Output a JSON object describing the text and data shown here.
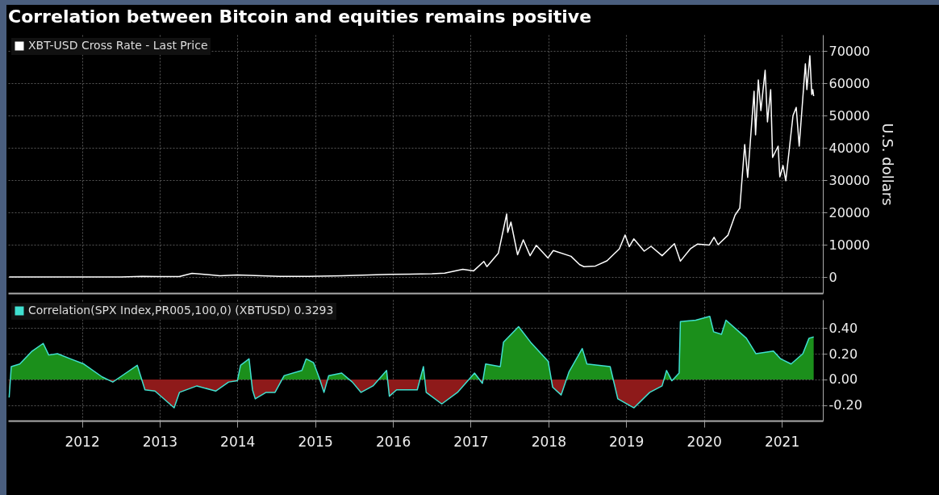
{
  "chart_data": [
    {
      "type": "line",
      "title": "Correlation between Bitcoin and equities remains positive",
      "ylabel": "U.S. dollars",
      "xlim": [
        "2011-07-20",
        "2022-01-10"
      ],
      "xticks": [
        {
          "value": "2012-07-01",
          "label": null
        },
        {
          "value": "2013-07-01",
          "label": null
        },
        {
          "value": "2014-07-01",
          "label": null
        },
        {
          "value": "2015-07-01",
          "label": null
        },
        {
          "value": "2016-07-01",
          "label": null
        },
        {
          "value": "2017-07-01",
          "label": null
        },
        {
          "value": "2018-07-01",
          "label": null
        },
        {
          "value": "2019-07-01",
          "label": null
        },
        {
          "value": "2020-07-01",
          "label": null
        },
        {
          "value": "2021-07-01",
          "label": null
        }
      ],
      "ylim": [
        -5000,
        75000
      ],
      "yticks": [
        0,
        10000,
        20000,
        30000,
        40000,
        50000,
        60000,
        70000
      ],
      "tick_labels": "y",
      "grid": true,
      "legend": "top left",
      "series": [
        {
          "name": "XBT-USD Cross Rate - Last Price",
          "color": "#ffffff",
          "x": [
            "2011-07-25",
            "2011-11-15",
            "2012-06-01",
            "2012-08-15",
            "2013-01-01",
            "2013-04-10",
            "2013-07-01",
            "2013-10-01",
            "2013-11-30",
            "2014-01-15",
            "2014-04-10",
            "2014-07-01",
            "2015-01-14",
            "2015-06-01",
            "2015-11-04",
            "2016-06-16",
            "2016-12-31",
            "2017-03-01",
            "2017-05-25",
            "2017-07-15",
            "2017-09-01",
            "2017-09-15",
            "2017-11-08",
            "2017-12-17",
            "2017-12-22",
            "2018-01-06",
            "2018-02-06",
            "2018-03-05",
            "2018-04-06",
            "2018-05-05",
            "2018-06-29",
            "2018-07-24",
            "2018-10-15",
            "2018-11-25",
            "2018-12-15",
            "2019-02-07",
            "2019-04-02",
            "2019-05-30",
            "2019-06-26",
            "2019-07-16",
            "2019-08-06",
            "2019-09-24",
            "2019-10-26",
            "2019-12-17",
            "2020-02-13",
            "2020-03-12",
            "2020-04-29",
            "2020-06-01",
            "2020-07-26",
            "2020-08-17",
            "2020-09-05",
            "2020-10-21",
            "2020-11-24",
            "2020-12-16",
            "2021-01-08",
            "2021-01-22",
            "2021-02-21",
            "2021-02-28",
            "2021-03-13",
            "2021-03-25",
            "2021-04-14",
            "2021-04-25",
            "2021-05-10",
            "2021-05-19",
            "2021-06-14",
            "2021-06-22",
            "2021-07-07",
            "2021-07-20",
            "2021-08-23",
            "2021-09-07",
            "2021-09-21",
            "2021-10-20",
            "2021-10-27",
            "2021-11-10",
            "2021-11-19",
            "2021-11-24",
            "2021-11-28"
          ],
          "values": [
            0,
            0,
            0,
            0,
            0,
            200,
            100,
            100,
            1100,
            900,
            400,
            600,
            200,
            200,
            400,
            800,
            1000,
            1200,
            2400,
            1900,
            4800,
            3200,
            7400,
            19500,
            13800,
            17000,
            6900,
            11500,
            6600,
            9800,
            5900,
            8200,
            6400,
            3800,
            3200,
            3400,
            5000,
            8700,
            13000,
            9400,
            11800,
            8000,
            9500,
            6600,
            10300,
            4900,
            8800,
            10200,
            9900,
            12300,
            10000,
            12900,
            19200,
            21300,
            41000,
            30800,
            57500,
            44000,
            61000,
            51500,
            64000,
            48000,
            58000,
            37000,
            40500,
            31000,
            34500,
            29800,
            50000,
            52500,
            40500,
            66000,
            58000,
            68500,
            56500,
            58000,
            56000
          ]
        }
      ]
    },
    {
      "type": "area",
      "xlim": [
        "2011-07-20",
        "2022-01-10"
      ],
      "xticks": [
        {
          "value": "2012-07-01",
          "label": "2012"
        },
        {
          "value": "2013-07-01",
          "label": "2013"
        },
        {
          "value": "2014-07-01",
          "label": "2014"
        },
        {
          "value": "2015-07-01",
          "label": "2015"
        },
        {
          "value": "2016-07-01",
          "label": "2016"
        },
        {
          "value": "2017-07-01",
          "label": "2017"
        },
        {
          "value": "2018-07-01",
          "label": "2018"
        },
        {
          "value": "2019-07-01",
          "label": "2019"
        },
        {
          "value": "2020-07-01",
          "label": "2020"
        },
        {
          "value": "2021-07-01",
          "label": "2021"
        }
      ],
      "ylim": [
        -0.32,
        0.62
      ],
      "yticks": [
        {
          "value": -0.2,
          "label": "-0.20"
        },
        {
          "value": 0,
          "label": "0.00"
        },
        {
          "value": 0.2,
          "label": "0.20"
        },
        {
          "value": 0.4,
          "label": "0.40"
        }
      ],
      "grid": true,
      "legend": "top left",
      "series": [
        {
          "name": "Correlation(SPX Index,PR005,100,0) (XBTUSD) 0.3293",
          "color": "#40e0d0",
          "x": [
            "2011-07-25",
            "2011-08-04",
            "2011-09-13",
            "2011-11-10",
            "2012-01-01",
            "2012-01-27",
            "2012-03-08",
            "2012-05-08",
            "2012-07-10",
            "2012-10-04",
            "2012-11-23",
            "2012-12-28",
            "2013-03-18",
            "2013-04-23",
            "2013-06-09",
            "2013-09-07",
            "2013-10-02",
            "2013-12-23",
            "2014-03-21",
            "2014-05-21",
            "2014-07-01",
            "2014-07-16",
            "2014-08-25",
            "2014-09-10",
            "2014-09-23",
            "2014-11-13",
            "2014-12-25",
            "2015-02-06",
            "2015-04-30",
            "2015-05-20",
            "2015-06-24",
            "2015-07-21",
            "2015-08-12",
            "2015-09-03",
            "2015-11-03",
            "2015-12-23",
            "2016-02-02",
            "2016-03-29",
            "2016-06-01",
            "2016-06-14",
            "2016-07-18",
            "2016-10-23",
            "2016-11-21",
            "2016-12-04",
            "2017-02-15",
            "2017-04-30",
            "2017-07-19",
            "2017-08-25",
            "2017-09-09",
            "2017-11-17",
            "2017-12-02",
            "2018-02-11",
            "2018-04-08",
            "2018-06-30",
            "2018-07-21",
            "2018-08-30",
            "2018-10-06",
            "2018-12-07",
            "2018-12-29",
            "2019-04-17",
            "2019-05-23",
            "2019-08-07",
            "2019-10-20",
            "2019-12-17",
            "2020-01-07",
            "2020-02-01",
            "2020-03-06",
            "2020-03-12",
            "2020-05-23",
            "2020-07-28",
            "2020-08-15",
            "2020-09-21",
            "2020-10-12",
            "2021-01-16",
            "2021-03-02",
            "2021-05-23",
            "2021-06-26",
            "2021-08-14",
            "2021-10-08",
            "2021-11-06",
            "2021-11-28"
          ],
          "values": [
            -0.14,
            0.1,
            0.12,
            0.22,
            0.28,
            0.19,
            0.2,
            0.16,
            0.12,
            0.02,
            -0.02,
            0.02,
            0.11,
            -0.08,
            -0.09,
            -0.22,
            -0.1,
            -0.05,
            -0.09,
            -0.02,
            -0.01,
            0.11,
            0.16,
            -0.08,
            -0.15,
            -0.1,
            -0.1,
            0.03,
            0.07,
            0.16,
            0.13,
            0.01,
            -0.1,
            0.03,
            0.05,
            -0.02,
            -0.1,
            -0.05,
            0.07,
            -0.13,
            -0.08,
            -0.08,
            0.1,
            -0.1,
            -0.19,
            -0.1,
            0.05,
            -0.03,
            0.12,
            0.1,
            0.29,
            0.41,
            0.29,
            0.14,
            -0.06,
            -0.12,
            0.06,
            0.24,
            0.12,
            0.1,
            -0.15,
            -0.22,
            -0.1,
            -0.05,
            0.07,
            -0.01,
            0.05,
            0.45,
            0.46,
            0.49,
            0.37,
            0.35,
            0.46,
            0.32,
            0.2,
            0.22,
            0.16,
            0.12,
            0.2,
            0.32,
            0.33
          ]
        }
      ]
    }
  ]
}
